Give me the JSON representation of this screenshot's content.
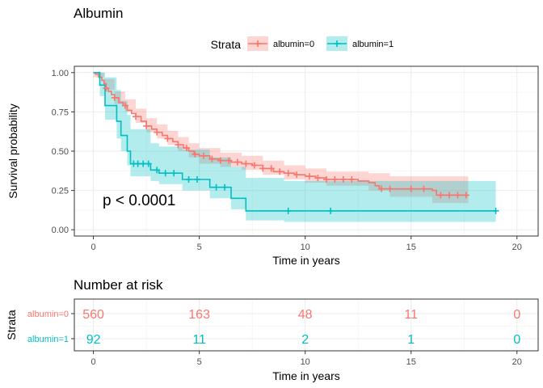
{
  "chart_data": [
    {
      "type": "line",
      "subtype": "kaplan-meier",
      "title": "Albumin",
      "xlabel": "Time in years",
      "ylabel": "Survival probability",
      "xlim": [
        -0.9,
        21.0
      ],
      "ylim": [
        -0.04,
        1.04
      ],
      "x_ticks": [
        0,
        5,
        10,
        15,
        20
      ],
      "y_ticks": [
        0.0,
        0.25,
        0.5,
        0.75,
        1.0
      ],
      "y_tick_labels": [
        "0.00",
        "0.25",
        "0.50",
        "0.75",
        "1.00"
      ],
      "grid": true,
      "legend": {
        "title": "Strata",
        "position": "top"
      },
      "annotation": {
        "text": "p < 0.0001",
        "x": 0.4,
        "y": 0.155
      },
      "series": [
        {
          "name": "albumin=0",
          "color": "#F8766D",
          "fill": "#F8766D",
          "points": [
            [
              0,
              1.0
            ],
            [
              0.1,
              0.99
            ],
            [
              0.25,
              0.97
            ],
            [
              0.4,
              0.95
            ],
            [
              0.5,
              0.93
            ],
            [
              0.6,
              0.9
            ],
            [
              0.7,
              0.88
            ],
            [
              0.85,
              0.86
            ],
            [
              1.0,
              0.84
            ],
            [
              1.2,
              0.81
            ],
            [
              1.4,
              0.79
            ],
            [
              1.6,
              0.76
            ],
            [
              1.8,
              0.74
            ],
            [
              2.0,
              0.72
            ],
            [
              2.25,
              0.69
            ],
            [
              2.5,
              0.66
            ],
            [
              2.75,
              0.64
            ],
            [
              3.0,
              0.62
            ],
            [
              3.25,
              0.6
            ],
            [
              3.5,
              0.58
            ],
            [
              3.75,
              0.56
            ],
            [
              4.0,
              0.54
            ],
            [
              4.25,
              0.52
            ],
            [
              4.5,
              0.5
            ],
            [
              4.75,
              0.48
            ],
            [
              5.0,
              0.47
            ],
            [
              5.5,
              0.45
            ],
            [
              6.0,
              0.44
            ],
            [
              6.5,
              0.43
            ],
            [
              7.0,
              0.42
            ],
            [
              7.5,
              0.41
            ],
            [
              8.0,
              0.39
            ],
            [
              8.5,
              0.37
            ],
            [
              9.0,
              0.36
            ],
            [
              9.5,
              0.35
            ],
            [
              10.0,
              0.34
            ],
            [
              10.5,
              0.33
            ],
            [
              11.0,
              0.32
            ],
            [
              11.5,
              0.32
            ],
            [
              12.0,
              0.32
            ],
            [
              12.5,
              0.31
            ],
            [
              13.0,
              0.3
            ],
            [
              13.3,
              0.28
            ],
            [
              13.5,
              0.26
            ],
            [
              14.5,
              0.26
            ],
            [
              15.5,
              0.26
            ],
            [
              16.0,
              0.25
            ],
            [
              16.2,
              0.22
            ],
            [
              17.7,
              0.22
            ]
          ],
          "upper": [
            [
              0,
              1.0
            ],
            [
              0.5,
              0.96
            ],
            [
              1.0,
              0.88
            ],
            [
              1.5,
              0.83
            ],
            [
              2.0,
              0.77
            ],
            [
              2.5,
              0.71
            ],
            [
              3.0,
              0.67
            ],
            [
              3.5,
              0.63
            ],
            [
              4.0,
              0.59
            ],
            [
              4.5,
              0.55
            ],
            [
              5.0,
              0.52
            ],
            [
              6.0,
              0.49
            ],
            [
              7.0,
              0.47
            ],
            [
              8.0,
              0.44
            ],
            [
              9.0,
              0.41
            ],
            [
              10.0,
              0.39
            ],
            [
              11.0,
              0.37
            ],
            [
              12.0,
              0.37
            ],
            [
              13.0,
              0.36
            ],
            [
              14.0,
              0.34
            ],
            [
              15.0,
              0.34
            ],
            [
              16.0,
              0.34
            ],
            [
              17.7,
              0.34
            ]
          ],
          "lower": [
            [
              0,
              0.97
            ],
            [
              0.5,
              0.89
            ],
            [
              1.0,
              0.8
            ],
            [
              1.5,
              0.75
            ],
            [
              2.0,
              0.68
            ],
            [
              2.5,
              0.62
            ],
            [
              3.0,
              0.58
            ],
            [
              3.5,
              0.54
            ],
            [
              4.0,
              0.5
            ],
            [
              4.5,
              0.46
            ],
            [
              5.0,
              0.42
            ],
            [
              6.0,
              0.4
            ],
            [
              7.0,
              0.38
            ],
            [
              8.0,
              0.35
            ],
            [
              9.0,
              0.32
            ],
            [
              10.0,
              0.3
            ],
            [
              11.0,
              0.28
            ],
            [
              12.0,
              0.28
            ],
            [
              13.0,
              0.25
            ],
            [
              14.0,
              0.21
            ],
            [
              15.0,
              0.21
            ],
            [
              16.0,
              0.17
            ],
            [
              17.7,
              0.16
            ]
          ],
          "censor_x": [
            0.6,
            1.0,
            1.5,
            2.0,
            2.5,
            3.0,
            3.5,
            4.0,
            4.4,
            4.8,
            5.2,
            5.6,
            6.0,
            6.4,
            6.8,
            7.2,
            7.6,
            8.0,
            8.4,
            8.8,
            9.2,
            9.6,
            10.2,
            10.6,
            11.0,
            11.4,
            11.8,
            12.2,
            13.6,
            14.0,
            15.0,
            15.6,
            16.4,
            16.8,
            17.2,
            17.6
          ]
        },
        {
          "name": "albumin=1",
          "color": "#00BFC4",
          "fill": "#00BFC4",
          "points": [
            [
              0,
              1.0
            ],
            [
              0.3,
              1.0
            ],
            [
              0.3,
              0.92
            ],
            [
              0.55,
              0.92
            ],
            [
              0.55,
              0.79
            ],
            [
              1.1,
              0.79
            ],
            [
              1.1,
              0.69
            ],
            [
              1.3,
              0.69
            ],
            [
              1.3,
              0.6
            ],
            [
              1.6,
              0.6
            ],
            [
              1.6,
              0.5
            ],
            [
              1.75,
              0.5
            ],
            [
              1.75,
              0.42
            ],
            [
              2.7,
              0.42
            ],
            [
              2.7,
              0.38
            ],
            [
              3.1,
              0.38
            ],
            [
              3.1,
              0.36
            ],
            [
              4.2,
              0.36
            ],
            [
              4.2,
              0.32
            ],
            [
              5.5,
              0.32
            ],
            [
              5.5,
              0.27
            ],
            [
              6.5,
              0.27
            ],
            [
              6.5,
              0.2
            ],
            [
              7.2,
              0.2
            ],
            [
              7.2,
              0.12
            ],
            [
              19.0,
              0.12
            ]
          ],
          "upper": [
            [
              0,
              1.0
            ],
            [
              0.3,
              1.0
            ],
            [
              0.55,
              0.97
            ],
            [
              1.1,
              0.89
            ],
            [
              1.3,
              0.82
            ],
            [
              1.6,
              0.73
            ],
            [
              1.75,
              0.64
            ],
            [
              2.7,
              0.55
            ],
            [
              3.1,
              0.53
            ],
            [
              4.2,
              0.51
            ],
            [
              5.5,
              0.46
            ],
            [
              6.5,
              0.4
            ],
            [
              7.2,
              0.33
            ],
            [
              9.0,
              0.31
            ],
            [
              19.0,
              0.3
            ]
          ],
          "lower": [
            [
              0,
              1.0
            ],
            [
              0.3,
              0.85
            ],
            [
              0.55,
              0.7
            ],
            [
              1.1,
              0.58
            ],
            [
              1.3,
              0.5
            ],
            [
              1.6,
              0.41
            ],
            [
              1.75,
              0.34
            ],
            [
              2.7,
              0.31
            ],
            [
              3.1,
              0.29
            ],
            [
              4.2,
              0.25
            ],
            [
              5.5,
              0.2
            ],
            [
              6.5,
              0.13
            ],
            [
              7.2,
              0.06
            ],
            [
              9.0,
              0.05
            ],
            [
              19.0,
              0.05
            ]
          ],
          "censor_x": [
            1.9,
            2.1,
            2.35,
            2.6,
            3.0,
            3.4,
            3.8,
            4.5,
            4.9,
            5.8,
            6.2,
            9.2,
            11.2,
            19.0
          ]
        }
      ]
    },
    {
      "type": "table",
      "title": "Number at risk",
      "xlabel": "Time in years",
      "ylabel": "Strata",
      "xlim": [
        -0.9,
        21.0
      ],
      "x_ticks": [
        0,
        5,
        10,
        15,
        20
      ],
      "times": [
        0,
        5,
        10,
        15,
        20
      ],
      "rows": [
        {
          "label": "albumin=0",
          "color": "#F8766D",
          "values": [
            "560",
            "163",
            "48",
            "11",
            "0"
          ]
        },
        {
          "label": "albumin=1",
          "color": "#00BFC4",
          "values": [
            "92",
            "11",
            "2",
            "1",
            "0"
          ]
        }
      ]
    }
  ]
}
